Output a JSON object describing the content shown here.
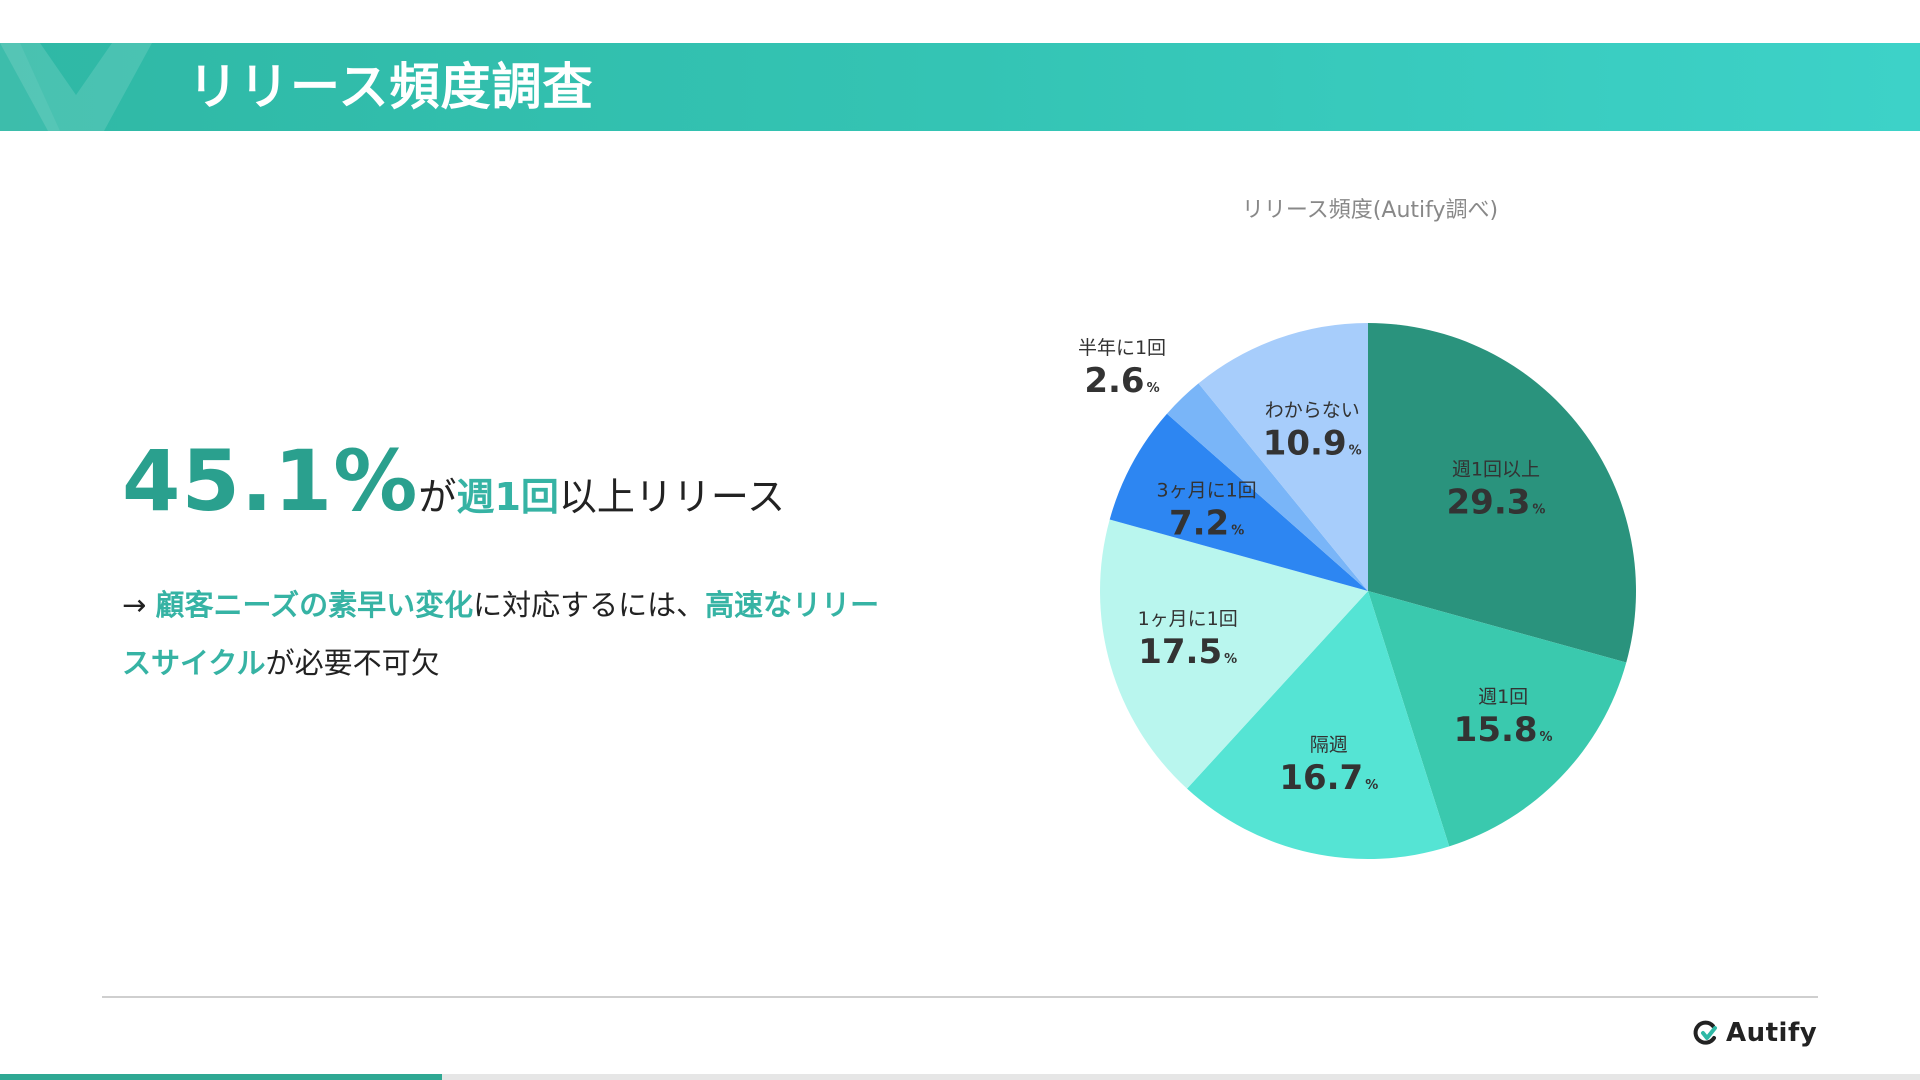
{
  "slide": {
    "title": "リリース頻度調査"
  },
  "headline": {
    "percent": "45.1%",
    "part1": "が",
    "accent": "週1回",
    "part2": "以上リリース"
  },
  "subtext": {
    "arrow": "→ ",
    "accent1": "顧客ニーズの素早い変化",
    "middle": "に対応するには、",
    "accent2": "高速なリリースサイクル",
    "end": "が必要不可欠"
  },
  "chart_data": {
    "type": "pie",
    "title": "リリース頻度(Autify調べ)",
    "unit": "%",
    "slices": [
      {
        "name": "週1回以上",
        "value": 29.3,
        "display": "29.3",
        "color": "#2a937d"
      },
      {
        "name": "週1回",
        "value": 15.8,
        "display": "15.8",
        "color": "#3ac9ae"
      },
      {
        "name": "隔週",
        "value": 16.7,
        "display": "16.7",
        "color": "#55e4d4"
      },
      {
        "name": "1ヶ月に1回",
        "value": 17.5,
        "display": "17.5",
        "color": "#b9f6ee"
      },
      {
        "name": "3ヶ月に1回",
        "value": 7.2,
        "display": "7.2",
        "color": "#2d86f2"
      },
      {
        "name": "半年に1回",
        "value": 2.6,
        "display": "2.6",
        "color": "#79b5f8"
      },
      {
        "name": "わからない",
        "value": 10.9,
        "display": "10.9",
        "color": "#a7cdfb"
      }
    ]
  },
  "footer": {
    "logo_text": "Autify",
    "logo_icon": "autify-logo-icon",
    "progress_fraction": 0.23
  },
  "colors": {
    "accent": "#36b3a4",
    "header": "#34c4b4"
  }
}
